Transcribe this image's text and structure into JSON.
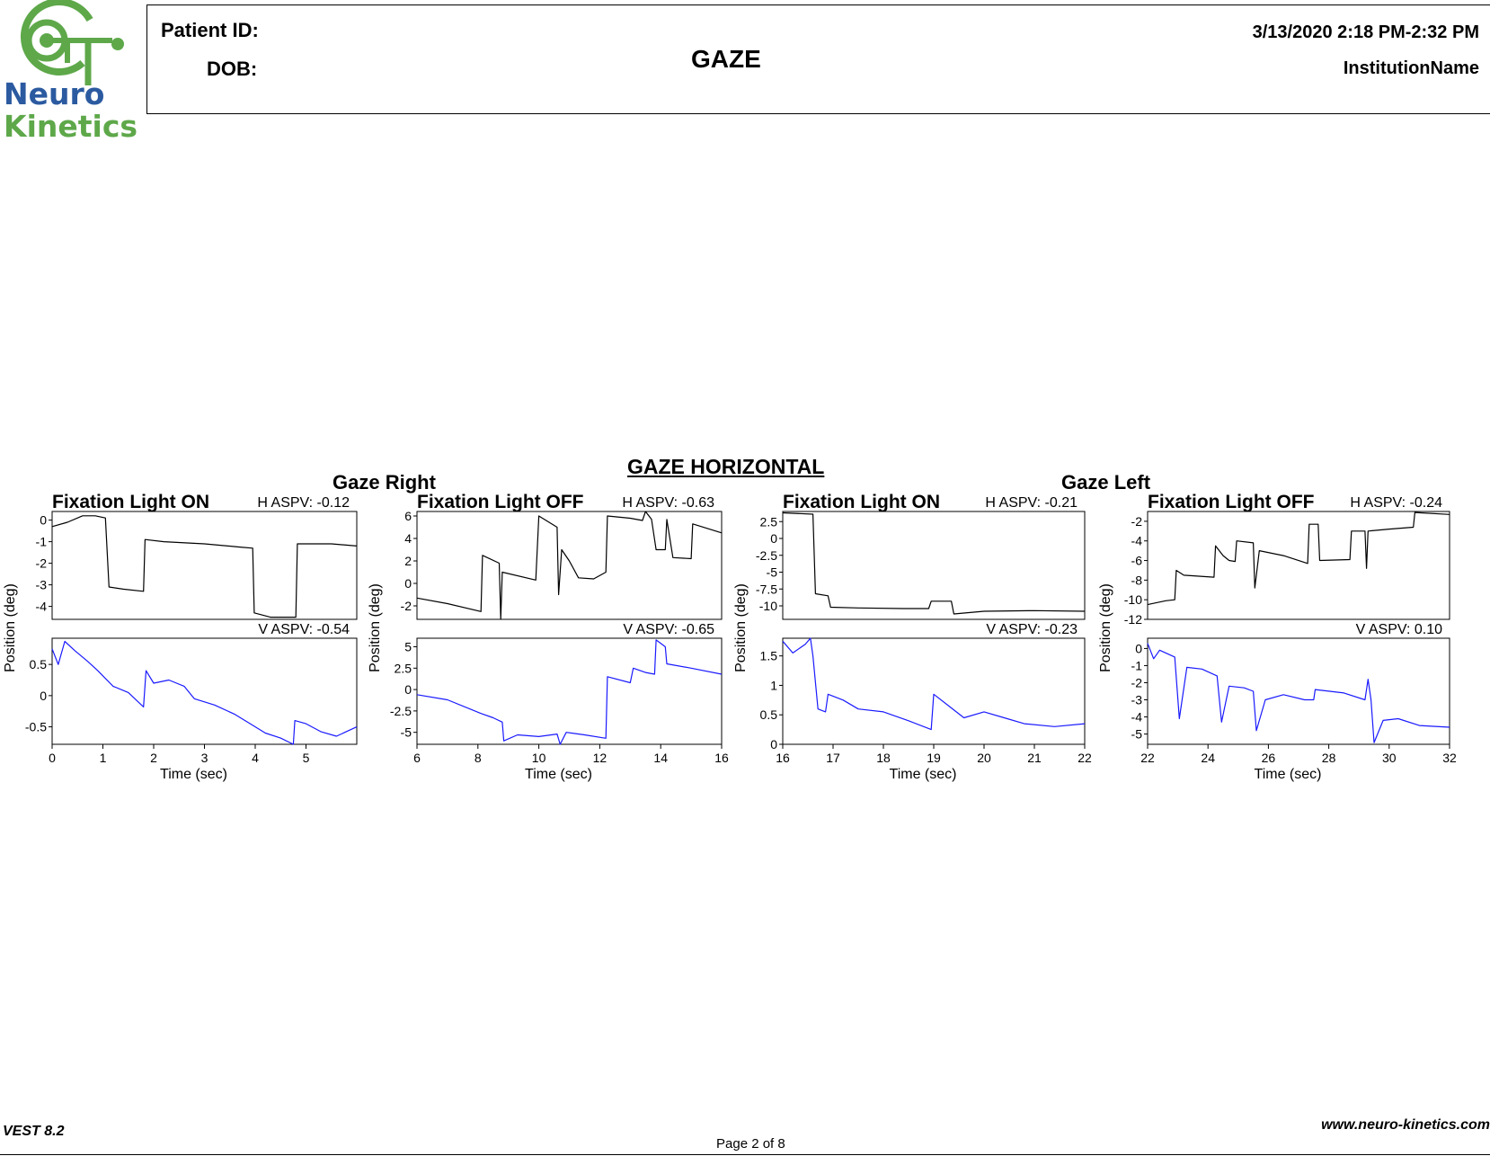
{
  "header": {
    "logo_line1": "Neuro",
    "logo_line2": "Kinetics",
    "patient_id_label": "Patient ID:",
    "dob_label": "DOB:",
    "title": "GAZE",
    "date_range": "3/13/2020 2:18 PM-2:32 PM",
    "institution": "InstitutionName"
  },
  "section": {
    "title": "GAZE HORIZONTAL",
    "group_right": "Gaze Right",
    "group_left": "Gaze Left"
  },
  "colors": {
    "horizontal_trace": "#000000",
    "vertical_trace": "#1a1aff",
    "logo_blue": "#2b5aa0",
    "logo_green": "#5ea84a"
  },
  "chart_data": [
    {
      "type": "line",
      "title": "Fixation Light ON",
      "xlabel": "Time (sec)",
      "ylabel": "Position (deg)",
      "xlim": [
        0,
        6
      ],
      "xticks": [
        0,
        1,
        2,
        3,
        4,
        5
      ],
      "horizontal": {
        "aspv_label": "H ASPV: -0.12",
        "ylim": [
          -4.6,
          0.4
        ],
        "yticks": [
          0,
          -1,
          -2,
          -3,
          -4
        ],
        "ytick_labels": [
          "0",
          "-1",
          "-2",
          "-3",
          "-4"
        ],
        "points": [
          [
            0,
            -0.3
          ],
          [
            0.3,
            -0.1
          ],
          [
            0.6,
            0.2
          ],
          [
            0.85,
            0.2
          ],
          [
            1.05,
            0.1
          ],
          [
            1.12,
            -3.1
          ],
          [
            1.4,
            -3.2
          ],
          [
            1.8,
            -3.3
          ],
          [
            1.83,
            -0.9
          ],
          [
            2.2,
            -1.0
          ],
          [
            3.0,
            -1.1
          ],
          [
            3.7,
            -1.25
          ],
          [
            3.95,
            -1.3
          ],
          [
            3.98,
            -4.3
          ],
          [
            4.3,
            -4.5
          ],
          [
            4.8,
            -4.5
          ],
          [
            4.83,
            -1.1
          ],
          [
            5.5,
            -1.1
          ],
          [
            6.0,
            -1.2
          ]
        ]
      },
      "vertical": {
        "aspv_label": "V ASPV: -0.54",
        "ylim": [
          -0.78,
          0.92
        ],
        "yticks": [
          0.5,
          0,
          -0.5
        ],
        "ytick_labels": [
          "0.5",
          "0",
          "-0.5"
        ],
        "points": [
          [
            0,
            0.75
          ],
          [
            0.12,
            0.5
          ],
          [
            0.25,
            0.87
          ],
          [
            0.45,
            0.72
          ],
          [
            0.7,
            0.55
          ],
          [
            0.9,
            0.4
          ],
          [
            1.2,
            0.15
          ],
          [
            1.5,
            0.05
          ],
          [
            1.8,
            -0.18
          ],
          [
            1.85,
            0.4
          ],
          [
            2.0,
            0.2
          ],
          [
            2.3,
            0.25
          ],
          [
            2.6,
            0.15
          ],
          [
            2.8,
            -0.05
          ],
          [
            3.2,
            -0.15
          ],
          [
            3.6,
            -0.3
          ],
          [
            3.9,
            -0.45
          ],
          [
            4.2,
            -0.6
          ],
          [
            4.5,
            -0.68
          ],
          [
            4.75,
            -0.78
          ],
          [
            4.78,
            -0.4
          ],
          [
            5.0,
            -0.45
          ],
          [
            5.3,
            -0.58
          ],
          [
            5.6,
            -0.65
          ],
          [
            6.0,
            -0.5
          ]
        ]
      }
    },
    {
      "type": "line",
      "title": "Fixation Light OFF",
      "xlabel": "Time (sec)",
      "ylabel": "Position (deg)",
      "xlim": [
        6,
        16
      ],
      "xticks": [
        6,
        8,
        10,
        12,
        14,
        16
      ],
      "horizontal": {
        "aspv_label": "H ASPV: -0.63",
        "ylim": [
          -3.2,
          6.4
        ],
        "yticks": [
          6,
          4,
          2,
          0,
          -2
        ],
        "ytick_labels": [
          "6",
          "4",
          "2",
          "0",
          "-2"
        ],
        "points": [
          [
            6.0,
            -1.3
          ],
          [
            7.0,
            -1.8
          ],
          [
            8.1,
            -2.5
          ],
          [
            8.15,
            2.5
          ],
          [
            8.7,
            1.8
          ],
          [
            8.75,
            -3.2
          ],
          [
            8.8,
            1.0
          ],
          [
            9.9,
            0.3
          ],
          [
            10.0,
            6.0
          ],
          [
            10.6,
            5.0
          ],
          [
            10.65,
            -1.0
          ],
          [
            10.75,
            3.0
          ],
          [
            11.0,
            2.0
          ],
          [
            11.3,
            0.5
          ],
          [
            11.8,
            0.4
          ],
          [
            12.2,
            1.0
          ],
          [
            12.25,
            6.0
          ],
          [
            13.0,
            5.8
          ],
          [
            13.4,
            5.6
          ],
          [
            13.5,
            6.4
          ],
          [
            13.7,
            5.7
          ],
          [
            13.85,
            3.0
          ],
          [
            14.15,
            3.0
          ],
          [
            14.2,
            5.7
          ],
          [
            14.4,
            2.3
          ],
          [
            15.0,
            2.2
          ],
          [
            15.05,
            5.3
          ],
          [
            16.0,
            4.5
          ]
        ]
      },
      "vertical": {
        "aspv_label": "V ASPV: -0.65",
        "ylim": [
          -6.4,
          6.0
        ],
        "yticks": [
          5,
          2.5,
          0,
          -2.5,
          -5
        ],
        "ytick_labels": [
          "5",
          "2.5",
          "0",
          "-2.5",
          "-5"
        ],
        "points": [
          [
            6.0,
            -0.6
          ],
          [
            7.0,
            -1.2
          ],
          [
            8.1,
            -2.8
          ],
          [
            8.5,
            -3.3
          ],
          [
            8.8,
            -3.8
          ],
          [
            8.85,
            -6.0
          ],
          [
            9.3,
            -5.3
          ],
          [
            10.0,
            -5.5
          ],
          [
            10.6,
            -5.2
          ],
          [
            10.7,
            -6.4
          ],
          [
            10.9,
            -5.0
          ],
          [
            11.5,
            -5.3
          ],
          [
            12.2,
            -5.7
          ],
          [
            12.25,
            1.5
          ],
          [
            13.0,
            0.8
          ],
          [
            13.1,
            2.5
          ],
          [
            13.5,
            2.0
          ],
          [
            13.8,
            1.8
          ],
          [
            13.85,
            5.8
          ],
          [
            14.15,
            5.0
          ],
          [
            14.2,
            3.0
          ],
          [
            15.0,
            2.5
          ],
          [
            16.0,
            1.8
          ]
        ]
      }
    },
    {
      "type": "line",
      "title": "Fixation Light ON",
      "xlabel": "Time (sec)",
      "ylabel": "Position (deg)",
      "xlim": [
        16,
        22
      ],
      "xticks": [
        16,
        17,
        18,
        19,
        20,
        21,
        22
      ],
      "horizontal": {
        "aspv_label": "H ASPV: -0.21",
        "ylim": [
          -12.0,
          4.0
        ],
        "yticks": [
          2.5,
          0,
          -2.5,
          -5,
          -7.5,
          -10
        ],
        "ytick_labels": [
          "2.5",
          "0",
          "-2.5",
          "-5",
          "-7.5",
          "-10"
        ],
        "points": [
          [
            16.0,
            3.8
          ],
          [
            16.6,
            3.6
          ],
          [
            16.65,
            -8.2
          ],
          [
            16.9,
            -8.5
          ],
          [
            16.95,
            -10.2
          ],
          [
            17.5,
            -10.3
          ],
          [
            18.4,
            -10.4
          ],
          [
            18.9,
            -10.4
          ],
          [
            18.95,
            -9.3
          ],
          [
            19.35,
            -9.3
          ],
          [
            19.4,
            -11.2
          ],
          [
            20.0,
            -10.8
          ],
          [
            21.0,
            -10.7
          ],
          [
            22.0,
            -10.8
          ]
        ]
      },
      "vertical": {
        "aspv_label": "V ASPV: -0.23",
        "ylim": [
          0,
          1.8
        ],
        "yticks": [
          1.5,
          1,
          0.5,
          0
        ],
        "ytick_labels": [
          "1.5",
          "1",
          "0.5",
          "0"
        ],
        "points": [
          [
            16.0,
            1.75
          ],
          [
            16.2,
            1.55
          ],
          [
            16.45,
            1.7
          ],
          [
            16.55,
            1.8
          ],
          [
            16.6,
            1.5
          ],
          [
            16.7,
            0.6
          ],
          [
            16.85,
            0.55
          ],
          [
            16.9,
            0.85
          ],
          [
            17.2,
            0.75
          ],
          [
            17.5,
            0.6
          ],
          [
            18.0,
            0.55
          ],
          [
            18.5,
            0.4
          ],
          [
            18.95,
            0.25
          ],
          [
            19.0,
            0.85
          ],
          [
            19.3,
            0.65
          ],
          [
            19.6,
            0.45
          ],
          [
            20.0,
            0.55
          ],
          [
            20.4,
            0.45
          ],
          [
            20.8,
            0.35
          ],
          [
            21.4,
            0.3
          ],
          [
            22.0,
            0.35
          ]
        ]
      }
    },
    {
      "type": "line",
      "title": "Fixation Light OFF",
      "xlabel": "Time (sec)",
      "ylabel": "Position (deg)",
      "xlim": [
        22,
        32
      ],
      "xticks": [
        22,
        24,
        26,
        28,
        30,
        32
      ],
      "horizontal": {
        "aspv_label": "H ASPV: -0.24",
        "ylim": [
          -12.0,
          -1.0
        ],
        "yticks": [
          -2,
          -4,
          -6,
          -8,
          -10,
          -12
        ],
        "ytick_labels": [
          "-2",
          "-4",
          "-6",
          "-8",
          "-10",
          "-12"
        ],
        "points": [
          [
            22.0,
            -10.5
          ],
          [
            22.6,
            -10.1
          ],
          [
            22.9,
            -10.0
          ],
          [
            22.95,
            -7.0
          ],
          [
            23.2,
            -7.5
          ],
          [
            24.2,
            -7.7
          ],
          [
            24.25,
            -4.5
          ],
          [
            24.5,
            -5.5
          ],
          [
            24.7,
            -6.0
          ],
          [
            24.9,
            -6.1
          ],
          [
            24.95,
            -4.0
          ],
          [
            25.5,
            -4.2
          ],
          [
            25.55,
            -8.8
          ],
          [
            25.7,
            -5.0
          ],
          [
            26.5,
            -5.5
          ],
          [
            27.3,
            -6.3
          ],
          [
            27.35,
            -2.3
          ],
          [
            27.65,
            -2.3
          ],
          [
            27.7,
            -6.0
          ],
          [
            28.7,
            -5.9
          ],
          [
            28.75,
            -3.0
          ],
          [
            29.2,
            -3.0
          ],
          [
            29.25,
            -6.8
          ],
          [
            29.3,
            -3.0
          ],
          [
            30.0,
            -2.8
          ],
          [
            30.8,
            -2.6
          ],
          [
            30.85,
            -1.1
          ],
          [
            32.0,
            -1.3
          ]
        ]
      },
      "vertical": {
        "aspv_label": "V ASPV: 0.10",
        "ylim": [
          -5.6,
          0.6
        ],
        "yticks": [
          0,
          -1,
          -2,
          -3,
          -4,
          -5
        ],
        "ytick_labels": [
          "0",
          "-1",
          "-2",
          "-3",
          "-4",
          "-5"
        ],
        "points": [
          [
            22.0,
            0.3
          ],
          [
            22.2,
            -0.6
          ],
          [
            22.4,
            -0.1
          ],
          [
            22.9,
            -0.5
          ],
          [
            23.05,
            -4.1
          ],
          [
            23.3,
            -1.1
          ],
          [
            23.8,
            -1.2
          ],
          [
            24.3,
            -1.6
          ],
          [
            24.45,
            -4.3
          ],
          [
            24.7,
            -2.2
          ],
          [
            25.2,
            -2.3
          ],
          [
            25.5,
            -2.5
          ],
          [
            25.6,
            -4.8
          ],
          [
            25.9,
            -3.0
          ],
          [
            26.5,
            -2.7
          ],
          [
            27.2,
            -3.0
          ],
          [
            27.5,
            -3.0
          ],
          [
            27.55,
            -2.4
          ],
          [
            28.5,
            -2.6
          ],
          [
            29.2,
            -3.0
          ],
          [
            29.3,
            -1.8
          ],
          [
            29.4,
            -3.0
          ],
          [
            29.5,
            -5.5
          ],
          [
            29.8,
            -4.2
          ],
          [
            30.3,
            -4.1
          ],
          [
            31.0,
            -4.5
          ],
          [
            32.0,
            -4.6
          ]
        ]
      }
    }
  ],
  "footer": {
    "version": "VEST 8.2",
    "page": "Page 2 of 8",
    "website": "www.neuro-kinetics.com"
  }
}
